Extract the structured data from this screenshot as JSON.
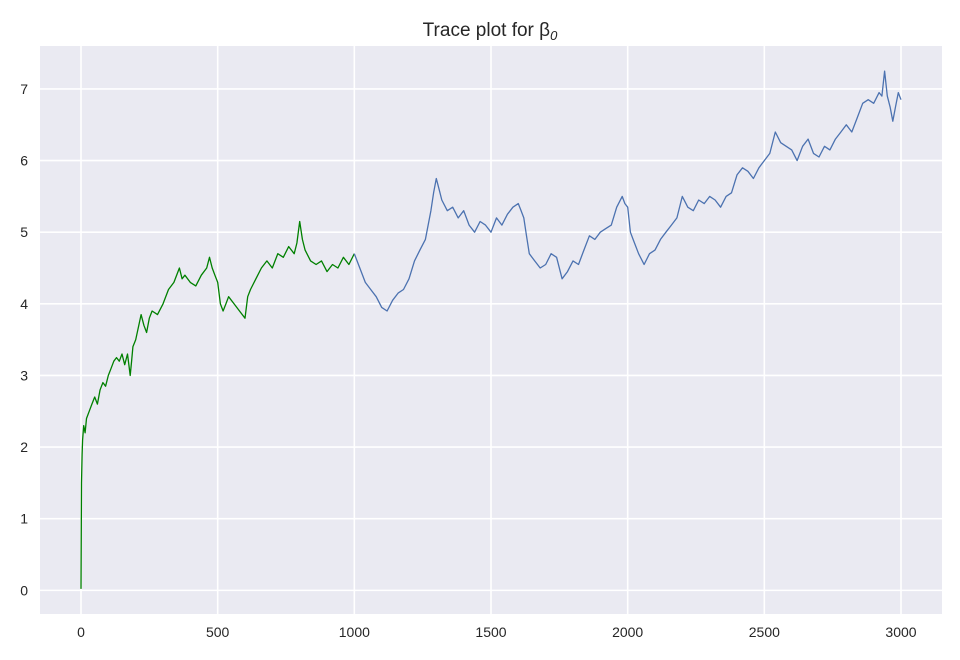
{
  "chart_data": {
    "type": "line",
    "title": "Trace plot for β",
    "title_subscript": "0",
    "xlabel": "",
    "ylabel": "",
    "xlim": [
      -150,
      3150
    ],
    "ylim": [
      -0.33,
      7.6
    ],
    "xticks": [
      0,
      500,
      1000,
      1500,
      2000,
      2500,
      3000
    ],
    "yticks": [
      0,
      1,
      2,
      3,
      4,
      5,
      6,
      7
    ],
    "grid": true,
    "legend": "none",
    "background_color": "#eaeaf2",
    "grid_color": "#ffffff",
    "series": [
      {
        "color": "#008000",
        "x": [
          0,
          2,
          4,
          6,
          10,
          15,
          20,
          30,
          40,
          50,
          60,
          70,
          80,
          90,
          100,
          110,
          120,
          130,
          140,
          150,
          160,
          170,
          180,
          185,
          190,
          200,
          220,
          230,
          240,
          250,
          260,
          280,
          300,
          320,
          340,
          360,
          370,
          380,
          400,
          420,
          440,
          460,
          470,
          480,
          490,
          500,
          510,
          520,
          530,
          540,
          560,
          580,
          600,
          610,
          620,
          640,
          660,
          680,
          700,
          720,
          740,
          760,
          780,
          790,
          800,
          810,
          820,
          840,
          860,
          880,
          900,
          920,
          940,
          960,
          980,
          1000
        ],
        "y": [
          0.02,
          1.5,
          1.9,
          2.1,
          2.3,
          2.2,
          2.4,
          2.5,
          2.6,
          2.7,
          2.6,
          2.8,
          2.9,
          2.85,
          3.0,
          3.1,
          3.2,
          3.25,
          3.2,
          3.3,
          3.15,
          3.3,
          3.0,
          3.2,
          3.4,
          3.5,
          3.85,
          3.7,
          3.6,
          3.8,
          3.9,
          3.85,
          4.0,
          4.2,
          4.3,
          4.5,
          4.35,
          4.4,
          4.3,
          4.25,
          4.4,
          4.5,
          4.65,
          4.5,
          4.4,
          4.3,
          4.0,
          3.9,
          4.0,
          4.1,
          4.0,
          3.9,
          3.8,
          4.1,
          4.2,
          4.35,
          4.5,
          4.6,
          4.5,
          4.7,
          4.65,
          4.8,
          4.7,
          4.85,
          5.15,
          4.9,
          4.75,
          4.6,
          4.55,
          4.6,
          4.45,
          4.55,
          4.5,
          4.65,
          4.55,
          4.7
        ]
      },
      {
        "color": "#4c72b0",
        "x": [
          1000,
          1020,
          1040,
          1060,
          1080,
          1100,
          1120,
          1140,
          1160,
          1180,
          1200,
          1220,
          1240,
          1260,
          1280,
          1290,
          1300,
          1310,
          1320,
          1340,
          1360,
          1380,
          1400,
          1420,
          1440,
          1460,
          1480,
          1500,
          1520,
          1540,
          1560,
          1580,
          1600,
          1610,
          1620,
          1630,
          1640,
          1660,
          1680,
          1700,
          1720,
          1740,
          1760,
          1780,
          1800,
          1820,
          1840,
          1860,
          1880,
          1900,
          1920,
          1940,
          1960,
          1980,
          1990,
          2000,
          2010,
          2020,
          2040,
          2060,
          2080,
          2100,
          2120,
          2140,
          2160,
          2180,
          2200,
          2220,
          2240,
          2260,
          2280,
          2300,
          2320,
          2340,
          2360,
          2380,
          2400,
          2420,
          2440,
          2460,
          2480,
          2500,
          2520,
          2540,
          2560,
          2580,
          2600,
          2620,
          2640,
          2660,
          2680,
          2700,
          2720,
          2740,
          2760,
          2780,
          2800,
          2820,
          2840,
          2860,
          2880,
          2900,
          2920,
          2930,
          2940,
          2950,
          2960,
          2970,
          2980,
          2990,
          3000
        ],
        "y": [
          4.7,
          4.5,
          4.3,
          4.2,
          4.1,
          3.95,
          3.9,
          4.05,
          4.15,
          4.2,
          4.35,
          4.6,
          4.75,
          4.9,
          5.3,
          5.55,
          5.75,
          5.6,
          5.45,
          5.3,
          5.35,
          5.2,
          5.3,
          5.1,
          5.0,
          5.15,
          5.1,
          5.0,
          5.2,
          5.1,
          5.25,
          5.35,
          5.4,
          5.3,
          5.2,
          4.95,
          4.7,
          4.6,
          4.5,
          4.55,
          4.7,
          4.65,
          4.35,
          4.45,
          4.6,
          4.55,
          4.75,
          4.95,
          4.9,
          5.0,
          5.05,
          5.1,
          5.35,
          5.5,
          5.4,
          5.35,
          5.0,
          4.9,
          4.7,
          4.55,
          4.7,
          4.75,
          4.9,
          5.0,
          5.1,
          5.2,
          5.5,
          5.35,
          5.3,
          5.45,
          5.4,
          5.5,
          5.45,
          5.35,
          5.5,
          5.55,
          5.8,
          5.9,
          5.85,
          5.75,
          5.9,
          6.0,
          6.1,
          6.4,
          6.25,
          6.2,
          6.15,
          6.0,
          6.2,
          6.3,
          6.1,
          6.05,
          6.2,
          6.15,
          6.3,
          6.4,
          6.5,
          6.4,
          6.6,
          6.8,
          6.85,
          6.8,
          6.95,
          6.9,
          7.25,
          6.9,
          6.75,
          6.55,
          6.75,
          6.95,
          6.85
        ]
      }
    ]
  }
}
